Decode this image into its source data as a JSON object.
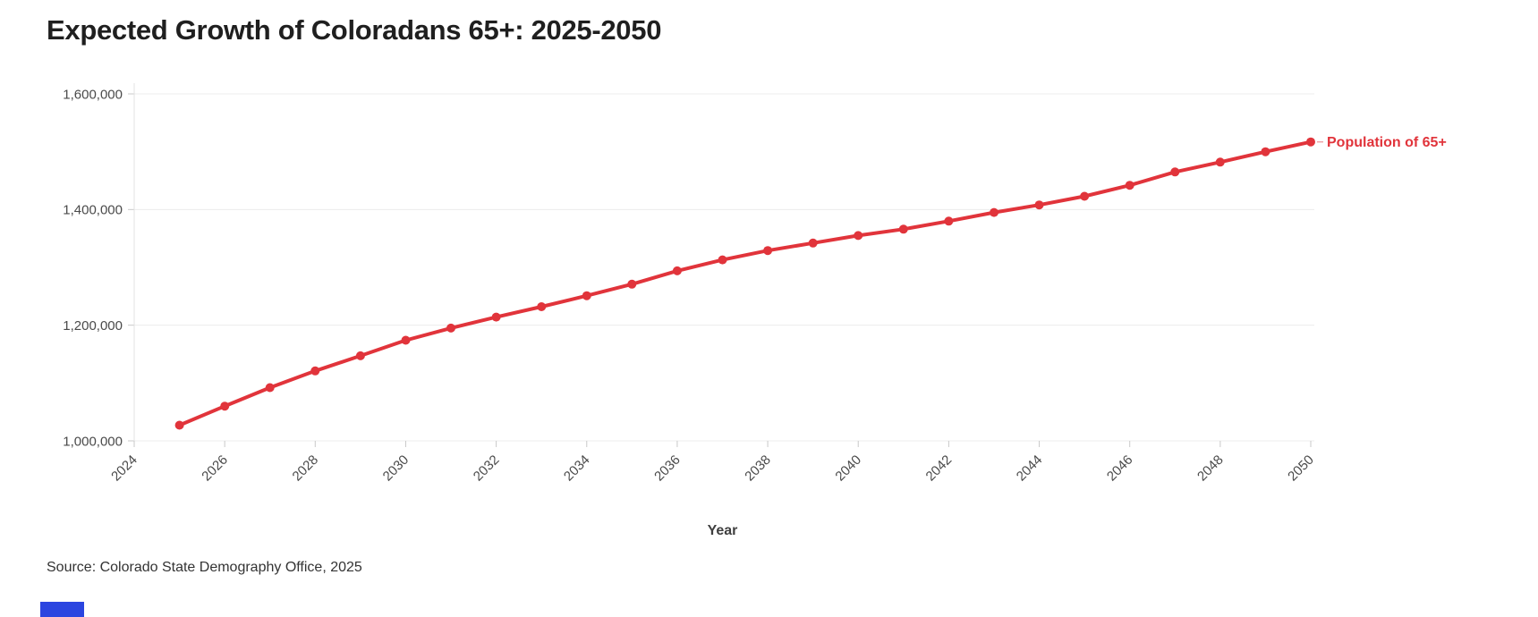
{
  "page": {
    "title": "Expected Growth of Coloradans 65+: 2025-2050",
    "source_note": "Source: Colorado State Demography Office, 2025"
  },
  "chart_data": {
    "type": "line",
    "title": "Expected Growth of Coloradans 65+: 2025-2050",
    "xlabel": "Year",
    "ylabel": "",
    "x": [
      2025,
      2026,
      2027,
      2028,
      2029,
      2030,
      2031,
      2032,
      2033,
      2034,
      2035,
      2036,
      2037,
      2038,
      2039,
      2040,
      2041,
      2042,
      2043,
      2044,
      2045,
      2046,
      2047,
      2048,
      2049,
      2050
    ],
    "series": [
      {
        "name": "Population of 65+",
        "color": "#e1343b",
        "values": [
          1027000,
          1060000,
          1092000,
          1121000,
          1147000,
          1174000,
          1195000,
          1214000,
          1232000,
          1251000,
          1271000,
          1294000,
          1313000,
          1329000,
          1342000,
          1355000,
          1366000,
          1380000,
          1395000,
          1408000,
          1423000,
          1442000,
          1465000,
          1482000,
          1500000,
          1517000
        ]
      }
    ],
    "xlim": [
      2024,
      2050
    ],
    "ylim": [
      1000000,
      1600000
    ],
    "x_tick_years": [
      "2024",
      "2026",
      "2028",
      "2030",
      "2032",
      "2034",
      "2036",
      "2038",
      "2040",
      "2042",
      "2044",
      "2046",
      "2048",
      "2050"
    ],
    "y_ticks": [
      {
        "value": 1000000,
        "label": "1,000,000"
      },
      {
        "value": 1200000,
        "label": "1,200,000"
      },
      {
        "value": 1400000,
        "label": "1,400,000"
      },
      {
        "value": 1600000,
        "label": "1,600,000"
      }
    ],
    "grid": "horizontal",
    "markers": "circle",
    "legend_position": "end-of-line"
  },
  "colors": {
    "accent_red": "#e1343b",
    "leader_dash": "#efa3a8",
    "grid_line": "#ececec",
    "axis_line": "#e3e3e3",
    "tick_mark": "#c9c9c9",
    "title_text": "#1f1f1f",
    "axis_text": "#4a4a4a",
    "axis_title_text": "#3f3f3f",
    "source_text": "#333333",
    "footer_bar_blue": "#2b45e0",
    "background": "#ffffff"
  }
}
